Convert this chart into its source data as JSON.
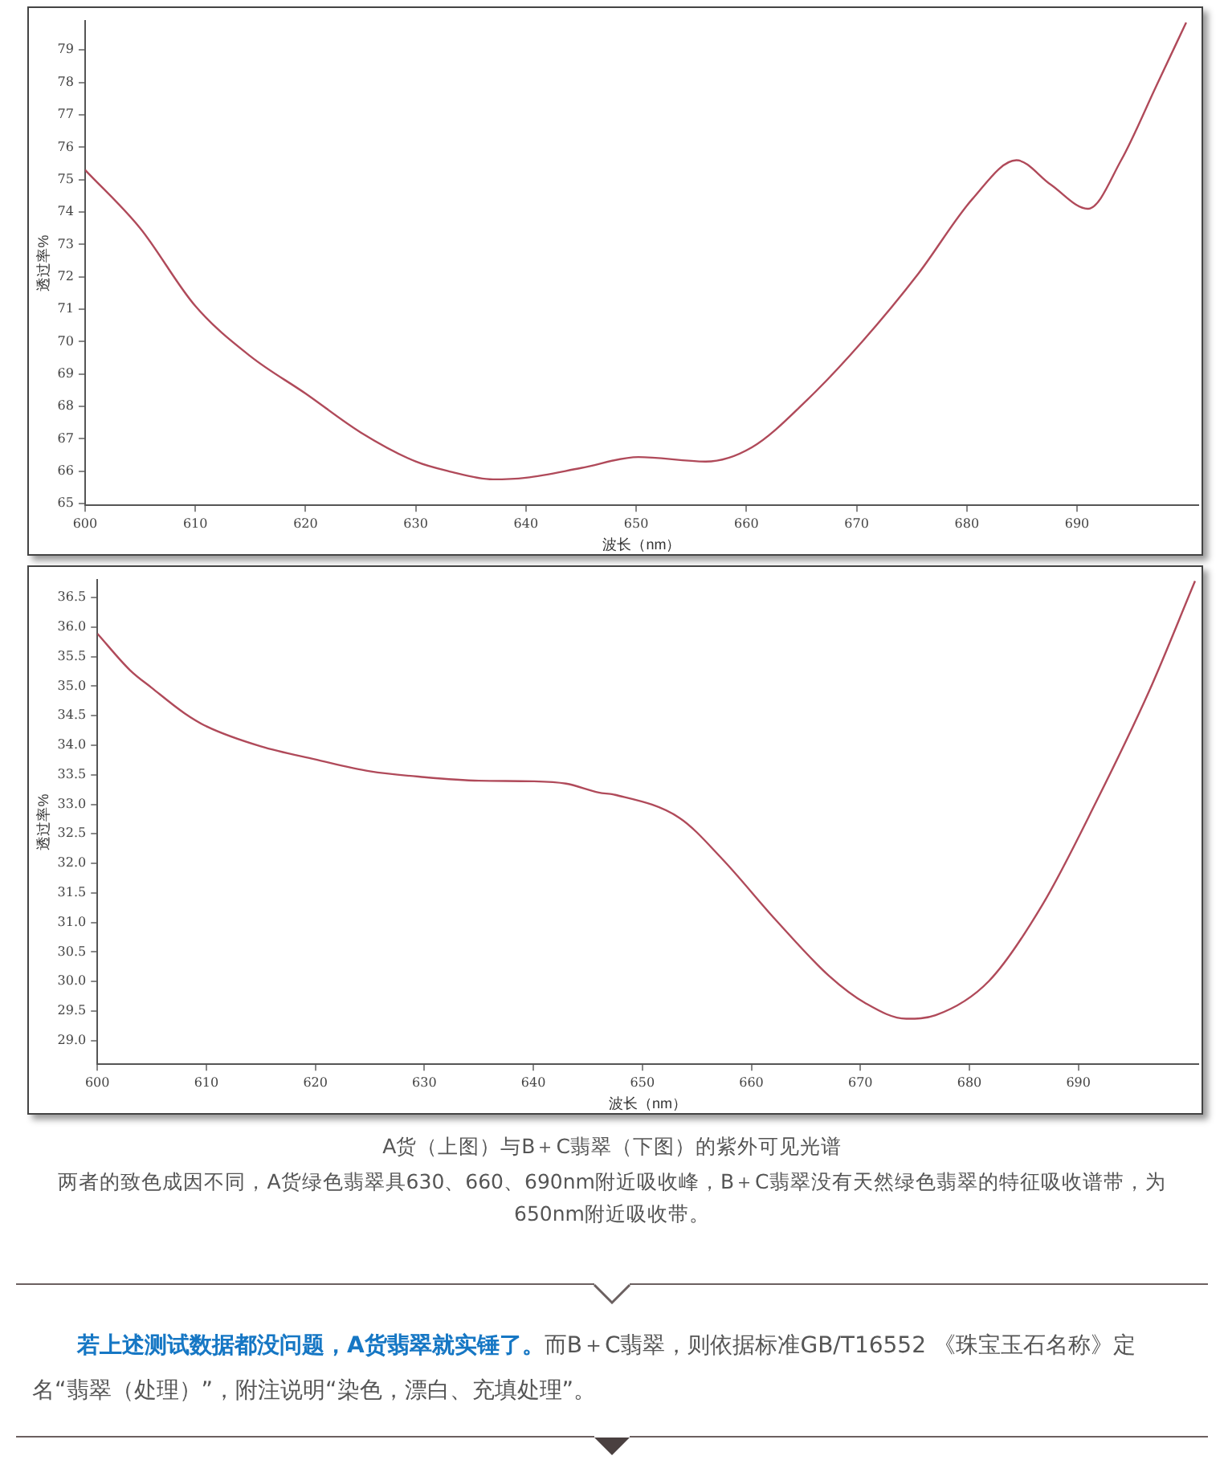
{
  "chart_data": [
    {
      "type": "line",
      "xlabel": "波长（nm）",
      "ylabel": "透过率%",
      "xlim": [
        600,
        701
      ],
      "ylim": [
        64.95,
        79.9
      ],
      "xticks": [
        600,
        610,
        620,
        630,
        640,
        650,
        660,
        670,
        680,
        690
      ],
      "yticks": [
        65,
        66,
        67,
        68,
        69,
        70,
        71,
        72,
        73,
        74,
        75,
        76,
        77,
        78,
        79
      ],
      "grid": false,
      "legend": false,
      "marker": "none",
      "line_style": "solid",
      "x": [
        600,
        605,
        610,
        615,
        620,
        625,
        630,
        633,
        637,
        640,
        645,
        650.2,
        656.3,
        660.5,
        665.5,
        670.5,
        675.6,
        680.5,
        684.5,
        687.6,
        691.0,
        694.0,
        697.2,
        699.9
      ],
      "series": [
        {
          "color": "#b04a5a",
          "values": [
            75.3,
            73.5,
            71.1,
            69.55,
            68.4,
            67.2,
            66.3,
            66.0,
            65.75,
            65.8,
            66.1,
            66.44,
            66.3,
            66.74,
            68.2,
            70.0,
            72.1,
            74.4,
            75.6,
            74.85,
            74.1,
            75.6,
            77.9,
            79.85
          ]
        }
      ]
    },
    {
      "type": "line",
      "xlabel": "波长（nm）",
      "ylabel": "透过率%",
      "xlim": [
        600,
        701
      ],
      "ylim": [
        28.6,
        36.8
      ],
      "xticks": [
        600,
        610,
        620,
        630,
        640,
        650,
        660,
        670,
        680,
        690
      ],
      "yticks": [
        {
          "value": 29,
          "label": "29.0"
        },
        29.5,
        {
          "value": 30,
          "label": "30.0"
        },
        30.5,
        {
          "value": 31,
          "label": "31.0"
        },
        31.5,
        {
          "value": 32,
          "label": "32.0"
        },
        32.5,
        {
          "value": 33,
          "label": "33.0"
        },
        33.5,
        {
          "value": 34,
          "label": "34.0"
        },
        34.5,
        {
          "value": 35,
          "label": "35.0"
        },
        35.5,
        {
          "value": 36,
          "label": "36.0"
        },
        36.5
      ],
      "grid": false,
      "legend": false,
      "marker": "none",
      "line_style": "solid",
      "x": [
        600,
        603,
        605,
        608,
        610,
        615,
        620,
        625,
        630,
        635,
        640,
        643,
        646,
        647.5,
        653.4,
        657.3,
        662.2,
        667.1,
        670.5,
        674.2,
        676.9,
        681.8,
        686.7,
        691.6,
        696.5,
        700.7
      ],
      "series": [
        {
          "color": "#b04a5a",
          "values": [
            35.89,
            35.27,
            34.97,
            34.54,
            34.32,
            33.98,
            33.76,
            33.56,
            33.46,
            33.4,
            33.39,
            33.35,
            33.2,
            33.16,
            32.77,
            32.08,
            31.05,
            30.1,
            29.63,
            29.37,
            29.43,
            30.01,
            31.3,
            33.03,
            34.92,
            36.78
          ]
        }
      ],
      "annotations": [
        "A货（上图）与B＋C翡翠（下图）的紫外可见光谱",
        "两者的致色成因不同，A货绿色翡翠具630、660、690nm附近吸收峰，B＋C翡翠没有天然绿色翡翠的特征吸收谱带，为650nm附近吸收带。",
        "若上述测试数据都没问题，A货翡翠就实锤了。",
        "而B＋C翡翠，则依据标准GB/T16552 《珠宝玉石名称》定名“翡翠（处理）”，附注说明“染色，漂白、充填处理”。"
      ]
    }
  ]
}
